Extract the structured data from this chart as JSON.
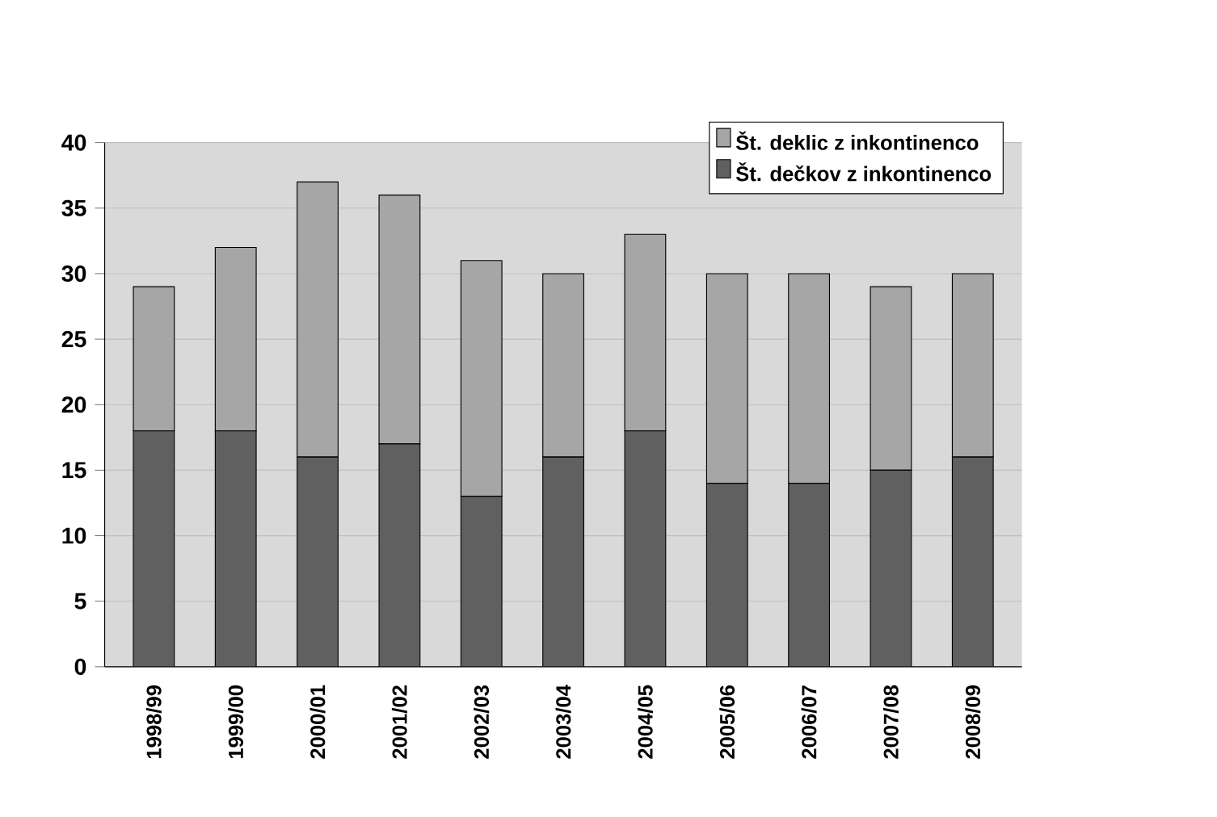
{
  "chart_data": {
    "type": "bar",
    "stacked": true,
    "categories": [
      "1998/99",
      "1999/00",
      "2000/01",
      "2001/02",
      "2002/03",
      "2003/04",
      "2004/05",
      "2005/06",
      "2006/07",
      "2007/08",
      "2008/09"
    ],
    "series": [
      {
        "name": "Št. dečkov z inkontinenco",
        "color": "#606060",
        "values": [
          18,
          18,
          16,
          17,
          13,
          16,
          18,
          14,
          14,
          15,
          16
        ]
      },
      {
        "name": "Št. deklic z inkontinenco",
        "color": "#a6a6a6",
        "values": [
          11,
          14,
          21,
          19,
          18,
          14,
          15,
          16,
          16,
          14,
          14
        ]
      }
    ],
    "ylim": [
      0,
      40
    ],
    "yticks": [
      0,
      5,
      10,
      15,
      20,
      25,
      30,
      35,
      40
    ],
    "grid": "y",
    "legend": "top right"
  }
}
